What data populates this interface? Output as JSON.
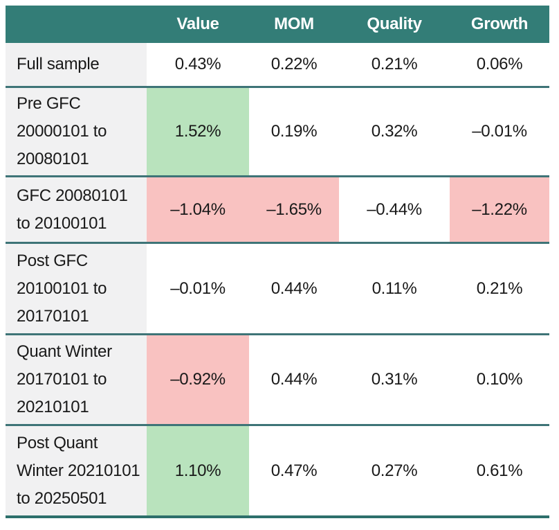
{
  "colors": {
    "header_bg": "#337d77",
    "row_rule": "#3e7477",
    "bottom_rule": "#2d6f6b",
    "positive_highlight": "#b9e3bd",
    "negative_highlight": "#f9c2c1",
    "label_column_bg": "#f1f1f2",
    "header_text": "#ffffff",
    "body_text": "#191919"
  },
  "table": {
    "column_headers": [
      "",
      "Value",
      "MOM",
      "Quality",
      "Growth"
    ],
    "rows": [
      {
        "label": "Full sample",
        "cells": [
          {
            "text": "0.43%",
            "highlight": "none"
          },
          {
            "text": "0.22%",
            "highlight": "none"
          },
          {
            "text": "0.21%",
            "highlight": "none"
          },
          {
            "text": "0.06%",
            "highlight": "none"
          }
        ]
      },
      {
        "label": "Pre GFC\n20000101 to\n20080101",
        "cells": [
          {
            "text": "1.52%",
            "highlight": "green"
          },
          {
            "text": "0.19%",
            "highlight": "none"
          },
          {
            "text": "0.32%",
            "highlight": "none"
          },
          {
            "text": "–0.01%",
            "highlight": "none"
          }
        ]
      },
      {
        "label": "GFC 20080101\nto 20100101",
        "cells": [
          {
            "text": "–1.04%",
            "highlight": "red"
          },
          {
            "text": "–1.65%",
            "highlight": "red"
          },
          {
            "text": "–0.44%",
            "highlight": "none"
          },
          {
            "text": "–1.22%",
            "highlight": "red"
          }
        ]
      },
      {
        "label": "Post GFC\n20100101 to\n20170101",
        "cells": [
          {
            "text": "–0.01%",
            "highlight": "none"
          },
          {
            "text": "0.44%",
            "highlight": "none"
          },
          {
            "text": "0.11%",
            "highlight": "none"
          },
          {
            "text": "0.21%",
            "highlight": "none"
          }
        ]
      },
      {
        "label": "Quant Winter\n20170101 to\n20210101",
        "cells": [
          {
            "text": "–0.92%",
            "highlight": "red"
          },
          {
            "text": "0.44%",
            "highlight": "none"
          },
          {
            "text": "0.31%",
            "highlight": "none"
          },
          {
            "text": "0.10%",
            "highlight": "none"
          }
        ]
      },
      {
        "label": "Post Quant\nWinter 20210101\nto 20250501",
        "cells": [
          {
            "text": "1.10%",
            "highlight": "green"
          },
          {
            "text": "0.47%",
            "highlight": "none"
          },
          {
            "text": "0.27%",
            "highlight": "none"
          },
          {
            "text": "0.61%",
            "highlight": "none"
          }
        ]
      }
    ]
  },
  "chart_data": {
    "type": "table",
    "title": "",
    "columns": [
      "Value",
      "MOM",
      "Quality",
      "Growth"
    ],
    "row_labels": [
      "Full sample",
      "Pre GFC 20000101 to 20080101",
      "GFC 20080101 to 20100101",
      "Post GFC 20100101 to 20170101",
      "Quant Winter 20170101 to 20210101",
      "Post Quant Winter 20210101 to 20250501"
    ],
    "values_percent": [
      [
        0.43,
        0.22,
        0.21,
        0.06
      ],
      [
        1.52,
        0.19,
        0.32,
        -0.01
      ],
      [
        -1.04,
        -1.65,
        -0.44,
        -1.22
      ],
      [
        -0.01,
        0.44,
        0.11,
        0.21
      ],
      [
        -0.92,
        0.44,
        0.31,
        0.1
      ],
      [
        1.1,
        0.47,
        0.27,
        0.61
      ]
    ],
    "highlight_legend": {
      "green": "strong positive period return highlighted",
      "red": "strong negative period return highlighted"
    }
  }
}
